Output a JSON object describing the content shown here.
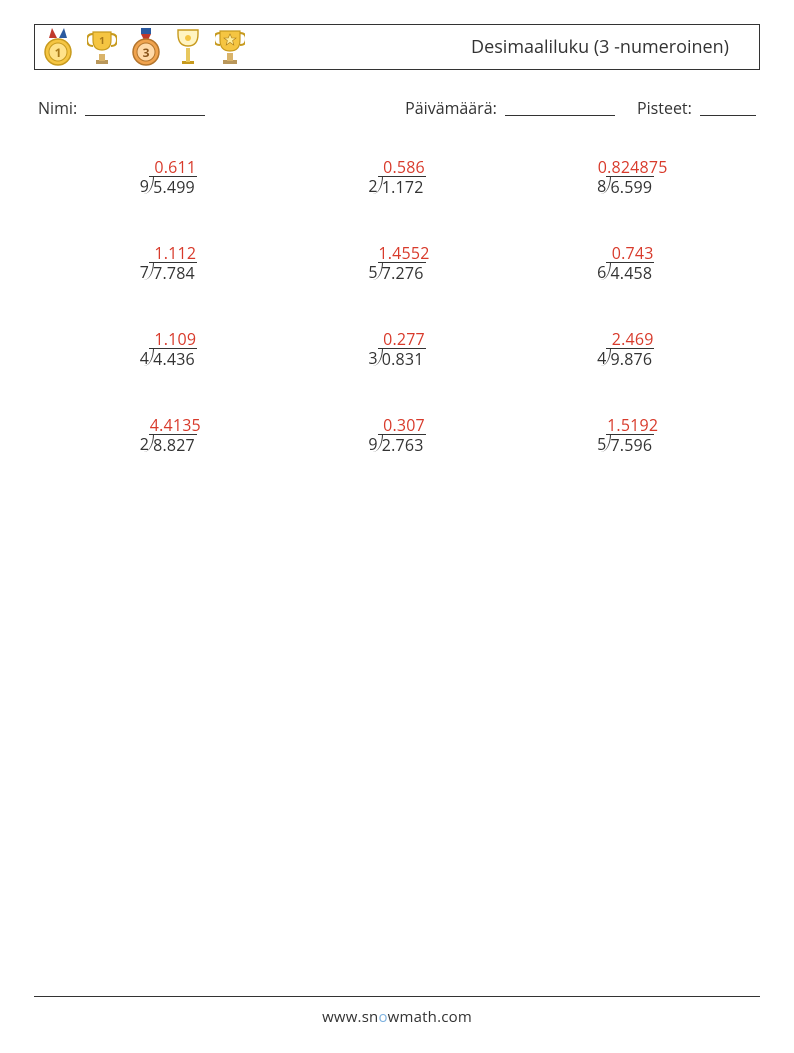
{
  "title": "Desimaaliluku (3 -numeroinen)",
  "labels": {
    "name": "Nimi:",
    "date": "Päivämäärä:",
    "score": "Pisteet:"
  },
  "answer_color": "#d83a2b",
  "text_color": "#333333",
  "background_color": "#ffffff",
  "fontsize_pt": 12,
  "grid": {
    "rows": 4,
    "cols": 3
  },
  "problems": [
    {
      "divisor": "9",
      "dividend": "5.499",
      "answer": "0.611"
    },
    {
      "divisor": "2",
      "dividend": "1.172",
      "answer": "0.586"
    },
    {
      "divisor": "8",
      "dividend": "6.599",
      "answer": "0.824875"
    },
    {
      "divisor": "7",
      "dividend": "7.784",
      "answer": "1.112"
    },
    {
      "divisor": "5",
      "dividend": "7.276",
      "answer": "1.4552"
    },
    {
      "divisor": "6",
      "dividend": "4.458",
      "answer": "0.743"
    },
    {
      "divisor": "4",
      "dividend": "4.436",
      "answer": "1.109"
    },
    {
      "divisor": "3",
      "dividend": "0.831",
      "answer": "0.277"
    },
    {
      "divisor": "4",
      "dividend": "9.876",
      "answer": "2.469"
    },
    {
      "divisor": "2",
      "dividend": "8.827",
      "answer": "4.4135"
    },
    {
      "divisor": "9",
      "dividend": "2.763",
      "answer": "0.307"
    },
    {
      "divisor": "5",
      "dividend": "7.596",
      "answer": "1.5192"
    }
  ],
  "footer": {
    "prefix": "www.",
    "mid1": "sn",
    "o": "o",
    "mid2": "wmath",
    "suffix": ".com"
  },
  "icons": [
    "medal-1-icon",
    "trophy-1-icon",
    "medal-3-icon",
    "chalice-icon",
    "trophy-star-icon"
  ]
}
